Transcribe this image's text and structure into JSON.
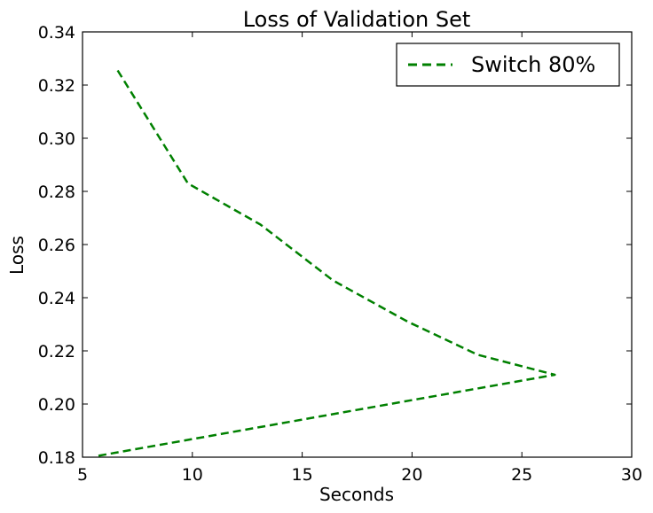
{
  "chart_data": {
    "type": "line",
    "title": "Loss of Validation Set",
    "xlabel": "Seconds",
    "ylabel": "Loss",
    "xlim": [
      5,
      30
    ],
    "ylim": [
      0.18,
      0.34
    ],
    "x_ticks": [
      "5",
      "10",
      "15",
      "20",
      "25",
      "30"
    ],
    "y_ticks": [
      "0.18",
      "0.20",
      "0.22",
      "0.24",
      "0.26",
      "0.28",
      "0.30",
      "0.32",
      "0.34"
    ],
    "grid": false,
    "legend_position": "top-right",
    "series": [
      {
        "name": "Switch 80%",
        "color": "#008000",
        "line_style": "dashed",
        "points": [
          [
            6.6,
            0.3255
          ],
          [
            9.8,
            0.283
          ],
          [
            13.1,
            0.2675
          ],
          [
            16.4,
            0.2465
          ],
          [
            19.8,
            0.231
          ],
          [
            23.0,
            0.2185
          ],
          [
            26.5,
            0.211
          ],
          [
            5.7,
            0.1805
          ]
        ]
      }
    ]
  }
}
